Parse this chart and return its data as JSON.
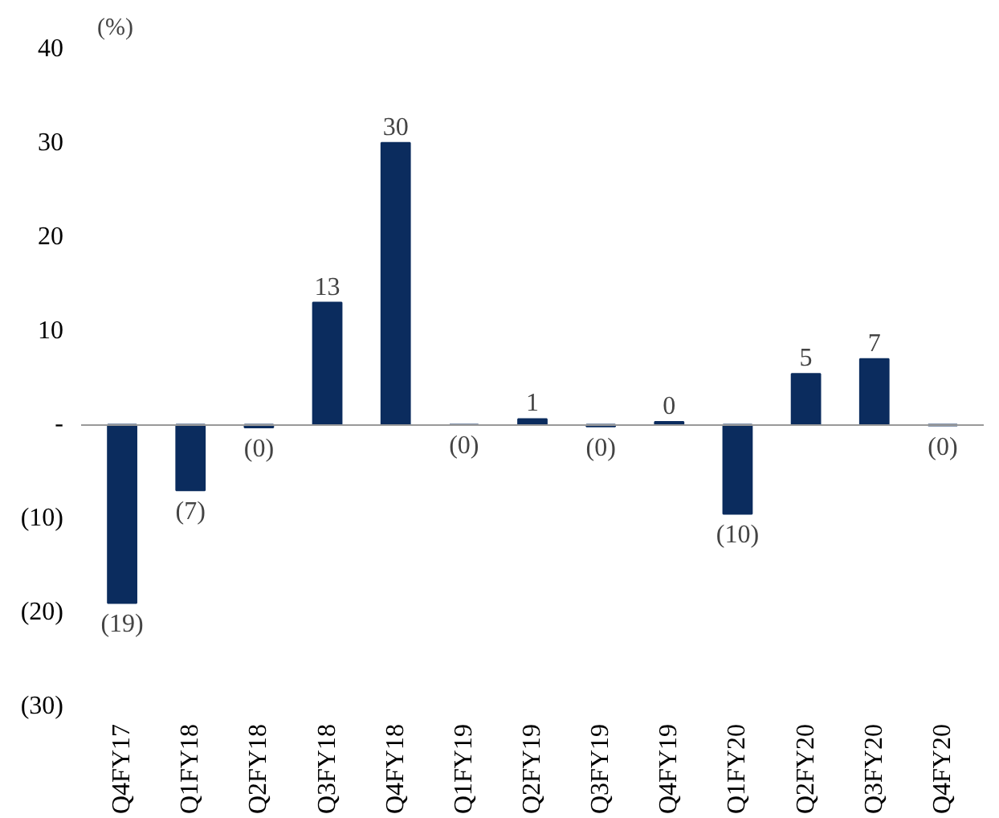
{
  "chart_data": {
    "type": "bar",
    "ylabel": "(%)",
    "categories": [
      "Q4FY17",
      "Q1FY18",
      "Q2FY18",
      "Q3FY18",
      "Q4FY18",
      "Q1FY19",
      "Q2FY19",
      "Q3FY19",
      "Q4FY19",
      "Q1FY20",
      "Q2FY20",
      "Q3FY20",
      "Q4FY20"
    ],
    "values": [
      -19,
      -7,
      -0.3,
      13,
      30,
      0,
      0.6,
      -0.2,
      0.3,
      -9.5,
      5.4,
      7,
      -0.1
    ],
    "value_labels": [
      "(19)",
      "(7)",
      "(0)",
      "13",
      "30",
      "(0)",
      "1",
      "(0)",
      "0",
      "(10)",
      "5",
      "7",
      "(0)"
    ],
    "color": "#0b2c5e",
    "ylim": [
      -30,
      40
    ],
    "yticks": [
      40,
      30,
      20,
      10,
      {
        "value": 0,
        "label": "-"
      },
      {
        "value": -10,
        "label": "(10)"
      },
      {
        "value": -20,
        "label": "(20)"
      },
      {
        "value": -30,
        "label": "(30)"
      }
    ]
  }
}
